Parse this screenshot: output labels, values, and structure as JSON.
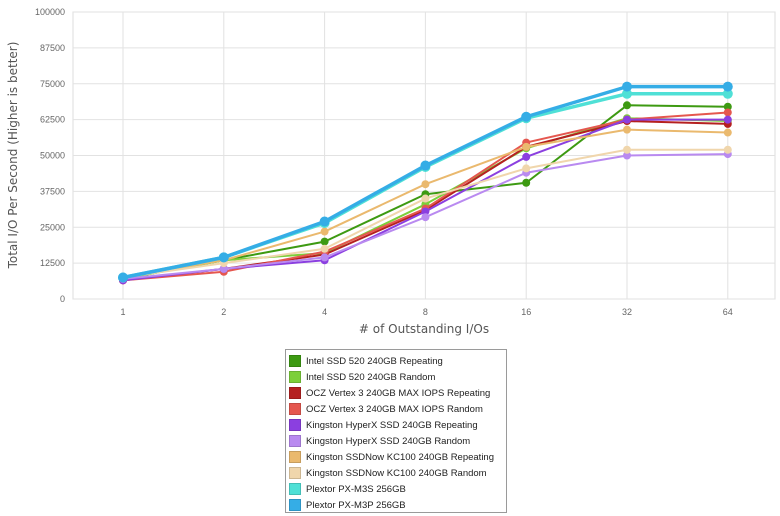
{
  "chart_data": {
    "type": "line",
    "title": "",
    "xlabel": "# of Outstanding I/Os",
    "ylabel": "Total I/O Per Second (Higher is better)",
    "categories": [
      "1",
      "2",
      "4",
      "8",
      "16",
      "32",
      "64"
    ],
    "ylim": [
      0,
      100000
    ],
    "yticks": [
      "0",
      "12500",
      "25000",
      "37500",
      "50000",
      "62500",
      "75000",
      "87500",
      "100000"
    ],
    "grid": true,
    "legend_position": "bottom",
    "series": [
      {
        "name": "Intel SSD 520 240GB Repeating",
        "color": "#3d9a12",
        "values": [
          7000,
          13500,
          20000,
          36500,
          40500,
          67500,
          67000
        ]
      },
      {
        "name": "Intel SSD 520 240GB Random",
        "color": "#7ccf3a",
        "values": [
          7000,
          13500,
          16000,
          33000,
          52500,
          63000,
          62000
        ]
      },
      {
        "name": "OCZ Vertex 3 240GB MAX IOPS Repeating",
        "color": "#b52020",
        "values": [
          6500,
          10500,
          15500,
          31000,
          53000,
          62000,
          61000
        ]
      },
      {
        "name": "OCZ Vertex 3 240GB MAX IOPS Random",
        "color": "#e5574f",
        "values": [
          6500,
          9500,
          16500,
          31500,
          54500,
          62500,
          65000
        ]
      },
      {
        "name": "Kingston HyperX SSD 240GB Repeating",
        "color": "#8b3fe0",
        "values": [
          6500,
          10500,
          13500,
          30500,
          49500,
          62500,
          62500
        ]
      },
      {
        "name": "Kingston HyperX SSD 240GB Random",
        "color": "#b98af0",
        "values": [
          7000,
          10500,
          14500,
          28500,
          44000,
          50000,
          50500
        ]
      },
      {
        "name": "Kingston SSDNow KC100 240GB Repeating",
        "color": "#eab96e",
        "values": [
          7500,
          13500,
          23500,
          40000,
          53000,
          59000,
          58000
        ]
      },
      {
        "name": "Kingston SSDNow KC100 240GB Random",
        "color": "#f0d6ac",
        "values": [
          7500,
          12500,
          17500,
          35000,
          45500,
          52000,
          52000
        ]
      },
      {
        "name": "Plextor PX-M3S 256GB",
        "color": "#4fe0d6",
        "values": [
          7500,
          14500,
          26500,
          46000,
          63000,
          71500,
          71500
        ]
      },
      {
        "name": "Plextor PX-M3P 256GB",
        "color": "#35ade6",
        "values": [
          7500,
          14500,
          27000,
          46500,
          63500,
          74000,
          74000
        ]
      }
    ]
  }
}
